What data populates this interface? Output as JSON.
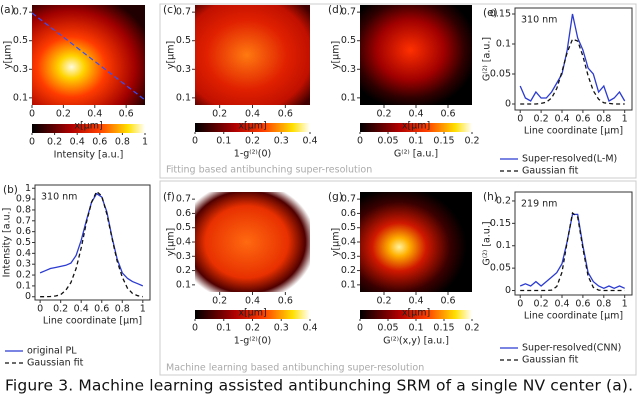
{
  "chart_data": [
    {
      "type": "heatmap",
      "label": "(a)",
      "xlabel": "x[μm]",
      "ylabel": "y[μm]",
      "xlim": [
        0,
        0.72
      ],
      "ylim": [
        0.05,
        0.75
      ],
      "xticks": [
        0,
        0.2,
        0.4,
        0.6
      ],
      "yticks": [
        0.1,
        0.3,
        0.5,
        0.7
      ],
      "colorbar": {
        "label": "Intensity [a.u.]",
        "lim": [
          0,
          1
        ],
        "ticks": [
          0,
          0.2,
          0.4,
          0.6,
          0.8,
          1
        ]
      }
    },
    {
      "type": "line",
      "label": "(b)",
      "annotation": "310 nm",
      "xlabel": "Line coordinate [μm]",
      "ylabel": "Intensity [a.u.]",
      "xlim": [
        -0.05,
        1.07
      ],
      "ylim": [
        -0.03,
        1.03
      ],
      "xticks": [
        0,
        0.2,
        0.4,
        0.6,
        0.8,
        1
      ],
      "yticks": [
        0,
        0.1,
        0.2,
        0.3,
        0.4,
        0.5,
        0.6,
        0.7,
        0.8,
        0.9,
        1
      ],
      "x": [
        0,
        0.05,
        0.1,
        0.15,
        0.2,
        0.25,
        0.3,
        0.35,
        0.4,
        0.45,
        0.5,
        0.55,
        0.6,
        0.65,
        0.7,
        0.75,
        0.8,
        0.85,
        0.9,
        0.95,
        1.0
      ],
      "series": [
        {
          "name": "original PL",
          "color": "#2b3bd1",
          "dash": false,
          "values": [
            0.22,
            0.24,
            0.26,
            0.27,
            0.28,
            0.29,
            0.31,
            0.38,
            0.52,
            0.7,
            0.87,
            0.95,
            0.92,
            0.78,
            0.55,
            0.35,
            0.22,
            0.17,
            0.14,
            0.12,
            0.1
          ]
        },
        {
          "name": "Gaussian fit",
          "color": "#111111",
          "dash": true,
          "values": [
            0,
            0,
            0.002,
            0.007,
            0.02,
            0.06,
            0.13,
            0.26,
            0.45,
            0.68,
            0.87,
            0.97,
            0.93,
            0.76,
            0.54,
            0.33,
            0.18,
            0.08,
            0.03,
            0.01,
            0
          ]
        }
      ]
    },
    {
      "type": "heatmap",
      "label": "(c)",
      "xlabel": "x[μm]",
      "ylabel": "y[μm]",
      "xlim": [
        0.05,
        0.75
      ],
      "ylim": [
        0.05,
        0.75
      ],
      "xticks": [
        0.2,
        0.4,
        0.6
      ],
      "yticks": [
        0.1,
        0.3,
        0.5,
        0.7
      ],
      "colorbar": {
        "label": "1-g⁽²⁾(0)",
        "lim": [
          0,
          0.4
        ],
        "ticks": [
          0,
          0.1,
          0.2,
          0.3,
          0.4
        ]
      }
    },
    {
      "type": "heatmap",
      "label": "(d)",
      "xlabel": "x[μm]",
      "ylabel": "y[μm]",
      "xlim": [
        0.05,
        0.75
      ],
      "ylim": [
        0.05,
        0.75
      ],
      "xticks": [
        0.2,
        0.4,
        0.6
      ],
      "yticks": [
        0.1,
        0.3,
        0.5,
        0.7
      ],
      "colorbar": {
        "label": "G⁽²⁾ [a.u.]",
        "lim": [
          0,
          0.2
        ],
        "ticks": [
          0,
          0.05,
          0.1,
          0.15,
          0.2
        ]
      }
    },
    {
      "type": "line",
      "label": "(e)",
      "annotation": "310 nm",
      "xlabel": "Line coordinate [μm]",
      "ylabel": "G⁽²⁾ [a.u.]",
      "xlim": [
        -0.05,
        1.07
      ],
      "ylim": [
        -0.01,
        0.16
      ],
      "xticks": [
        0,
        0.2,
        0.4,
        0.6,
        0.8,
        1
      ],
      "yticks": [
        0,
        0.05,
        0.1,
        0.15
      ],
      "x": [
        0,
        0.05,
        0.1,
        0.15,
        0.2,
        0.25,
        0.3,
        0.35,
        0.4,
        0.45,
        0.5,
        0.55,
        0.6,
        0.65,
        0.7,
        0.75,
        0.8,
        0.85,
        0.9,
        0.95,
        1.0
      ],
      "series": [
        {
          "name": "Super-resolved(L-M)",
          "color": "#2b3bd1",
          "dash": false,
          "values": [
            0.03,
            0.01,
            0.005,
            0.02,
            0.01,
            0.01,
            0.02,
            0.035,
            0.05,
            0.09,
            0.15,
            0.11,
            0.09,
            0.06,
            0.05,
            0.02,
            0.03,
            0.005,
            0.01,
            0.02,
            0.005
          ]
        },
        {
          "name": "Gaussian fit",
          "color": "#111111",
          "dash": true,
          "values": [
            0,
            0,
            0,
            0,
            0.001,
            0.003,
            0.01,
            0.026,
            0.054,
            0.086,
            0.108,
            0.105,
            0.08,
            0.047,
            0.022,
            0.008,
            0.002,
            0.001,
            0,
            0,
            0
          ]
        }
      ]
    },
    {
      "type": "heatmap",
      "label": "(f)",
      "xlabel": "x[μm]",
      "ylabel": "y[μm]",
      "xlim": [
        0.05,
        0.75
      ],
      "ylim": [
        0.05,
        0.75
      ],
      "xticks": [
        0.2,
        0.4,
        0.6
      ],
      "yticks": [
        0.1,
        0.2,
        0.3,
        0.4,
        0.5,
        0.6,
        0.7
      ],
      "colorbar": {
        "label": "1-g⁽²⁾(0)",
        "lim": [
          0,
          0.4
        ],
        "ticks": [
          0,
          0.1,
          0.2,
          0.3,
          0.4
        ]
      }
    },
    {
      "type": "heatmap",
      "label": "(g)",
      "xlabel": "x[μm]",
      "ylabel": "y[μm]",
      "xlim": [
        0.05,
        0.75
      ],
      "ylim": [
        0.05,
        0.75
      ],
      "xticks": [
        0.2,
        0.4,
        0.6
      ],
      "yticks": [
        0.1,
        0.2,
        0.3,
        0.4,
        0.5,
        0.6,
        0.7
      ],
      "colorbar": {
        "label": "G⁽²⁾(x,y) [a.u.]",
        "lim": [
          0,
          0.2
        ],
        "ticks": [
          0,
          0.05,
          0.1,
          0.15,
          0.2
        ]
      }
    },
    {
      "type": "line",
      "label": "(h)",
      "annotation": "219 nm",
      "xlabel": "Line coordinate [μm]",
      "ylabel": "G⁽²⁾ [a.u.]",
      "xlim": [
        -0.05,
        1.07
      ],
      "ylim": [
        -0.01,
        0.22
      ],
      "xticks": [
        0,
        0.2,
        0.4,
        0.6,
        0.8,
        1
      ],
      "yticks": [
        0,
        0.05,
        0.1,
        0.15,
        0.2
      ],
      "x": [
        0,
        0.05,
        0.1,
        0.15,
        0.2,
        0.25,
        0.3,
        0.35,
        0.4,
        0.45,
        0.5,
        0.55,
        0.6,
        0.65,
        0.7,
        0.75,
        0.8,
        0.85,
        0.9,
        0.95,
        1.0
      ],
      "series": [
        {
          "name": "Super-resolved(CNN)",
          "color": "#2b3bd1",
          "dash": false,
          "values": [
            0.01,
            0.015,
            0.01,
            0.02,
            0.01,
            0.02,
            0.03,
            0.04,
            0.06,
            0.11,
            0.17,
            0.17,
            0.1,
            0.04,
            0.02,
            0.01,
            0.005,
            0.01,
            0.005,
            0.01,
            0.005
          ]
        },
        {
          "name": "Gaussian fit",
          "color": "#111111",
          "dash": true,
          "values": [
            0,
            0,
            0,
            0,
            0,
            0,
            0.001,
            0.009,
            0.041,
            0.109,
            0.173,
            0.164,
            0.094,
            0.032,
            0.007,
            0.001,
            0,
            0,
            0,
            0,
            0
          ]
        }
      ]
    }
  ],
  "group_labels": [
    "Fitting based antibunching super-resolution",
    "Machine learning based antibunching super-resolution"
  ],
  "caption": "Figure 3. Machine learning assisted antibunching SRM of a single NV center (a)."
}
